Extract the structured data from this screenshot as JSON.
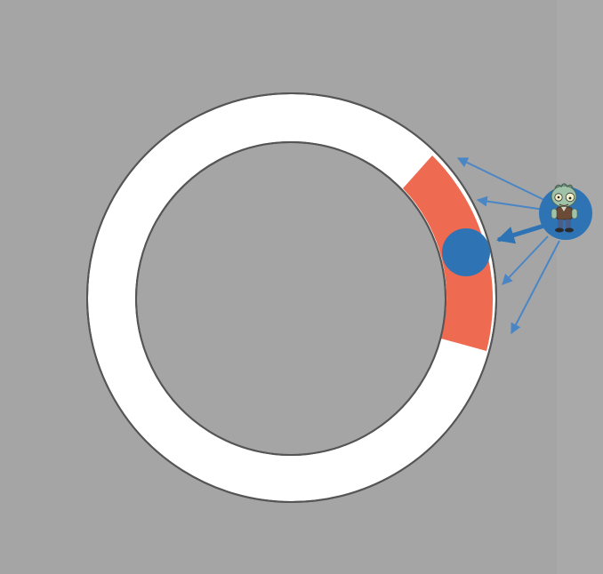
{
  "colors": {
    "background": "#a5a5a5",
    "ring_fill": "#ffffff",
    "ring_outline": "#555555",
    "highlight_segment": "#ee6a50",
    "player_marker": "#2e74b5",
    "arrow": "#4a86c5",
    "zombie_badge": "#2e74b5"
  },
  "icons": {
    "zombie": "zombie-character-icon",
    "player": "blue-dot-marker"
  },
  "scene": {
    "description_label": "",
    "arrow_count": 5
  }
}
